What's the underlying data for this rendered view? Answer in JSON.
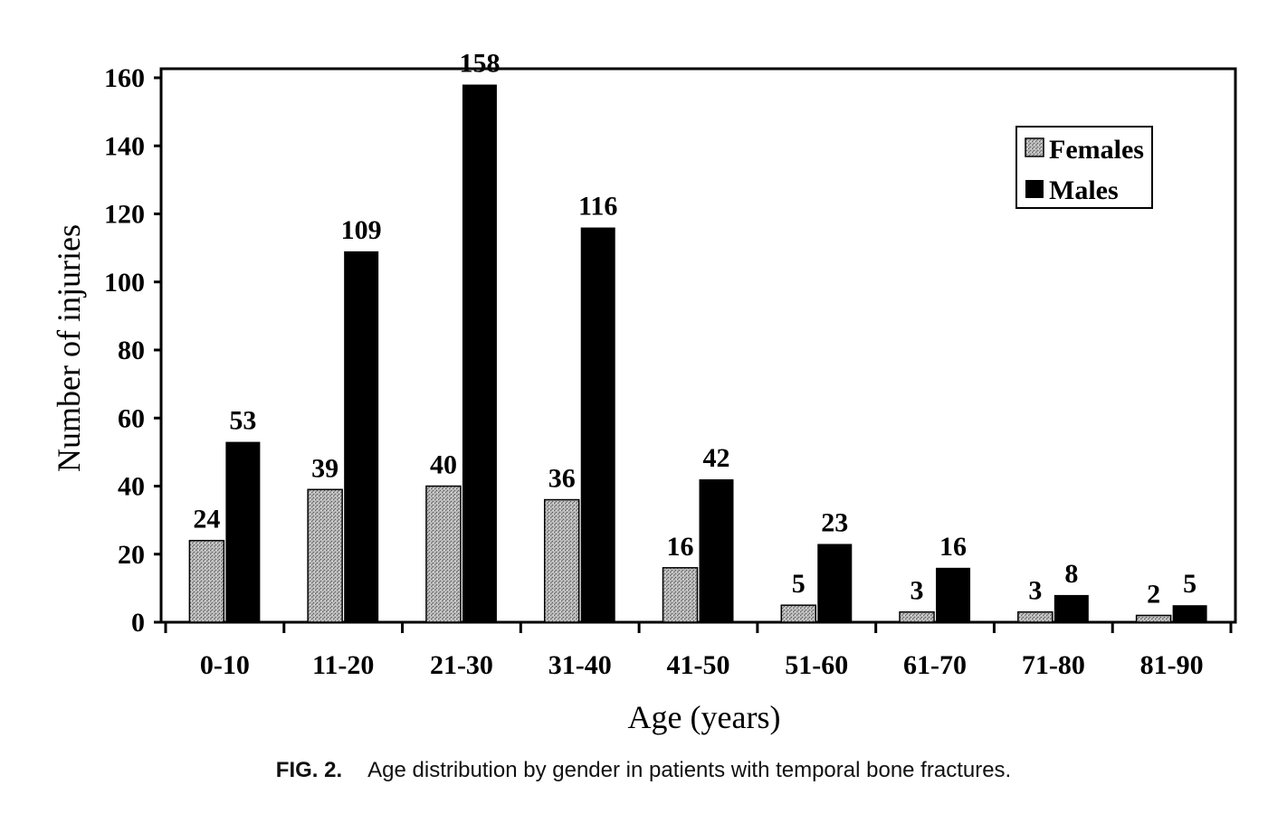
{
  "chart_data": {
    "type": "bar",
    "title": "",
    "xlabel": "Age (years)",
    "ylabel": "Number of injuries",
    "ylim": [
      0,
      160
    ],
    "yticks": [
      0,
      20,
      40,
      60,
      80,
      100,
      120,
      140,
      160
    ],
    "categories": [
      "0-10",
      "11-20",
      "21-30",
      "31-40",
      "41-50",
      "51-60",
      "61-70",
      "71-80",
      "81-90"
    ],
    "series": [
      {
        "name": "Females",
        "values": [
          24,
          39,
          40,
          36,
          16,
          5,
          3,
          3,
          2
        ],
        "pattern": "stippled-gray",
        "color": "#9a9a9a"
      },
      {
        "name": "Males",
        "values": [
          53,
          109,
          158,
          116,
          42,
          23,
          16,
          8,
          5
        ],
        "pattern": "solid-black",
        "color": "#000000"
      }
    ],
    "legend_position": "top-right",
    "grid": false
  },
  "caption": {
    "figure_number": "FIG. 2.",
    "text": "Age distribution by gender in patients with temporal bone fractures."
  }
}
